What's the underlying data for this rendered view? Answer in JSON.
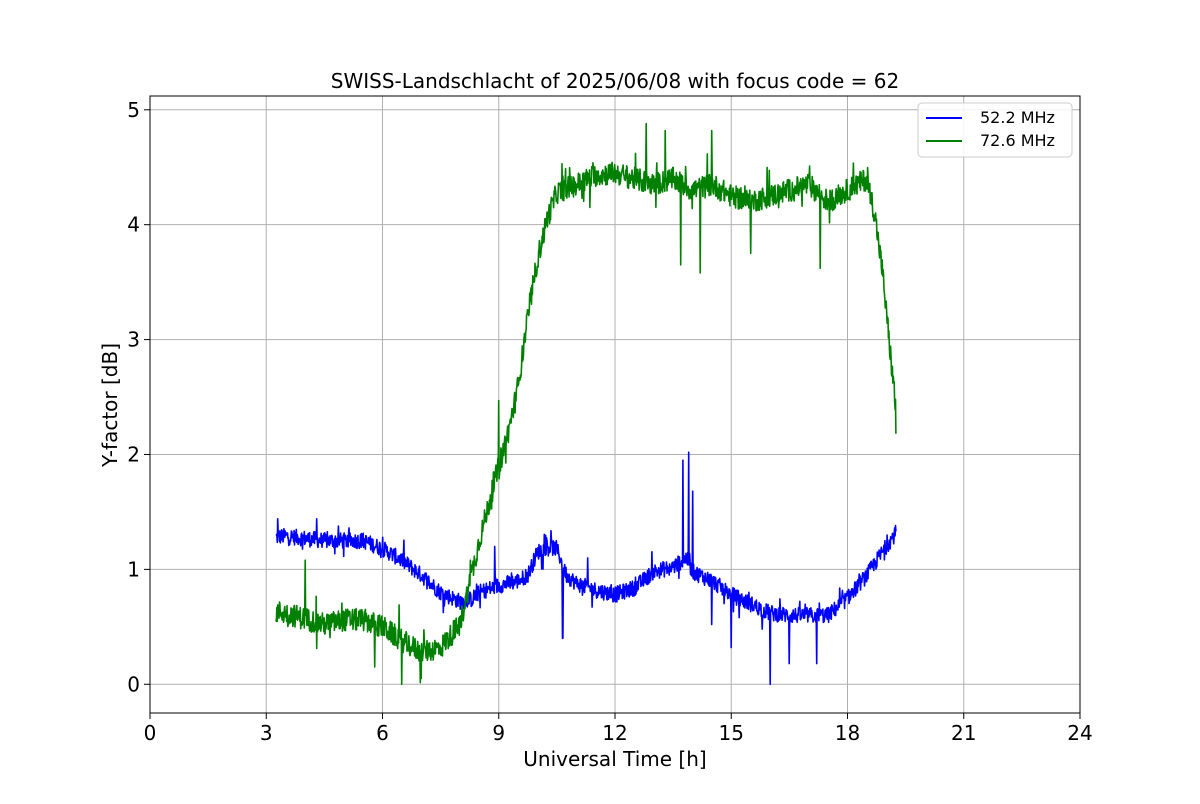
{
  "chart_data": {
    "type": "line",
    "title": "SWISS-Landschlacht of 2025/06/08 with focus code = 62",
    "xlabel": "Universal Time [h]",
    "ylabel": "Y-factor [dB]",
    "xlim": [
      0,
      24
    ],
    "ylim": [
      -0.25,
      5.12
    ],
    "xticks": [
      0,
      3,
      6,
      9,
      12,
      15,
      18,
      21,
      24
    ],
    "yticks": [
      0,
      1,
      2,
      3,
      4,
      5
    ],
    "grid": true,
    "legend_position": "top-right",
    "series": [
      {
        "name": "52.2 MHz",
        "color": "#0000ff",
        "x": [
          3.25,
          3.5,
          4.0,
          4.5,
          5.0,
          5.5,
          6.0,
          6.5,
          7.0,
          7.5,
          8.0,
          8.3,
          8.5,
          9.0,
          9.5,
          9.75,
          10.0,
          10.25,
          10.5,
          10.75,
          11.0,
          11.5,
          12.0,
          12.5,
          13.0,
          13.5,
          13.85,
          14.0,
          14.5,
          15.0,
          15.5,
          16.0,
          16.5,
          17.0,
          17.5,
          18.0,
          18.5,
          19.0,
          19.25
        ],
        "y": [
          1.28,
          1.29,
          1.27,
          1.25,
          1.25,
          1.25,
          1.18,
          1.08,
          0.95,
          0.8,
          0.72,
          0.74,
          0.8,
          0.86,
          0.9,
          0.95,
          1.15,
          1.2,
          1.18,
          0.95,
          0.88,
          0.82,
          0.78,
          0.84,
          0.98,
          1.02,
          1.1,
          0.98,
          0.9,
          0.78,
          0.7,
          0.62,
          0.6,
          0.6,
          0.6,
          0.75,
          0.95,
          1.2,
          1.32
        ],
        "noise": 0.07,
        "spikes": [
          [
            3.3,
            1.44
          ],
          [
            4.3,
            1.44
          ],
          [
            8.9,
            1.2
          ],
          [
            10.65,
            0.4
          ],
          [
            11.3,
            1.1
          ],
          [
            13.75,
            1.95
          ],
          [
            13.9,
            2.02
          ],
          [
            14.0,
            1.68
          ],
          [
            14.5,
            0.52
          ],
          [
            15.0,
            0.32
          ],
          [
            15.8,
            0.48
          ],
          [
            16.0,
            0.0
          ],
          [
            16.5,
            0.18
          ],
          [
            17.2,
            0.18
          ]
        ]
      },
      {
        "name": "72.6 MHz",
        "color": "#008000",
        "x": [
          3.25,
          3.5,
          4.0,
          4.5,
          5.0,
          5.5,
          6.0,
          6.5,
          7.0,
          7.5,
          8.0,
          8.5,
          9.0,
          9.25,
          9.5,
          9.75,
          10.0,
          10.25,
          10.5,
          11.0,
          11.5,
          12.0,
          12.5,
          13.0,
          13.5,
          14.0,
          14.5,
          15.0,
          15.5,
          16.0,
          16.5,
          17.0,
          17.5,
          18.0,
          18.5,
          18.7,
          18.9,
          19.1,
          19.25
        ],
        "y": [
          0.63,
          0.62,
          0.57,
          0.52,
          0.56,
          0.56,
          0.5,
          0.38,
          0.28,
          0.32,
          0.52,
          1.25,
          1.9,
          2.2,
          2.6,
          3.2,
          3.7,
          4.05,
          4.28,
          4.35,
          4.43,
          4.45,
          4.4,
          4.35,
          4.4,
          4.3,
          4.35,
          4.25,
          4.2,
          4.25,
          4.3,
          4.35,
          4.2,
          4.3,
          4.4,
          4.1,
          3.6,
          2.9,
          2.4
        ],
        "noise": 0.1,
        "spikes": [
          [
            4.0,
            1.08
          ],
          [
            5.8,
            0.15
          ],
          [
            6.5,
            0.0
          ],
          [
            7.0,
            0.05
          ],
          [
            9.0,
            2.47
          ],
          [
            12.8,
            4.88
          ],
          [
            13.3,
            4.82
          ],
          [
            13.7,
            3.65
          ],
          [
            14.2,
            3.58
          ],
          [
            14.5,
            4.82
          ],
          [
            15.5,
            3.75
          ],
          [
            17.3,
            3.62
          ],
          [
            19.25,
            2.18
          ]
        ]
      }
    ]
  }
}
